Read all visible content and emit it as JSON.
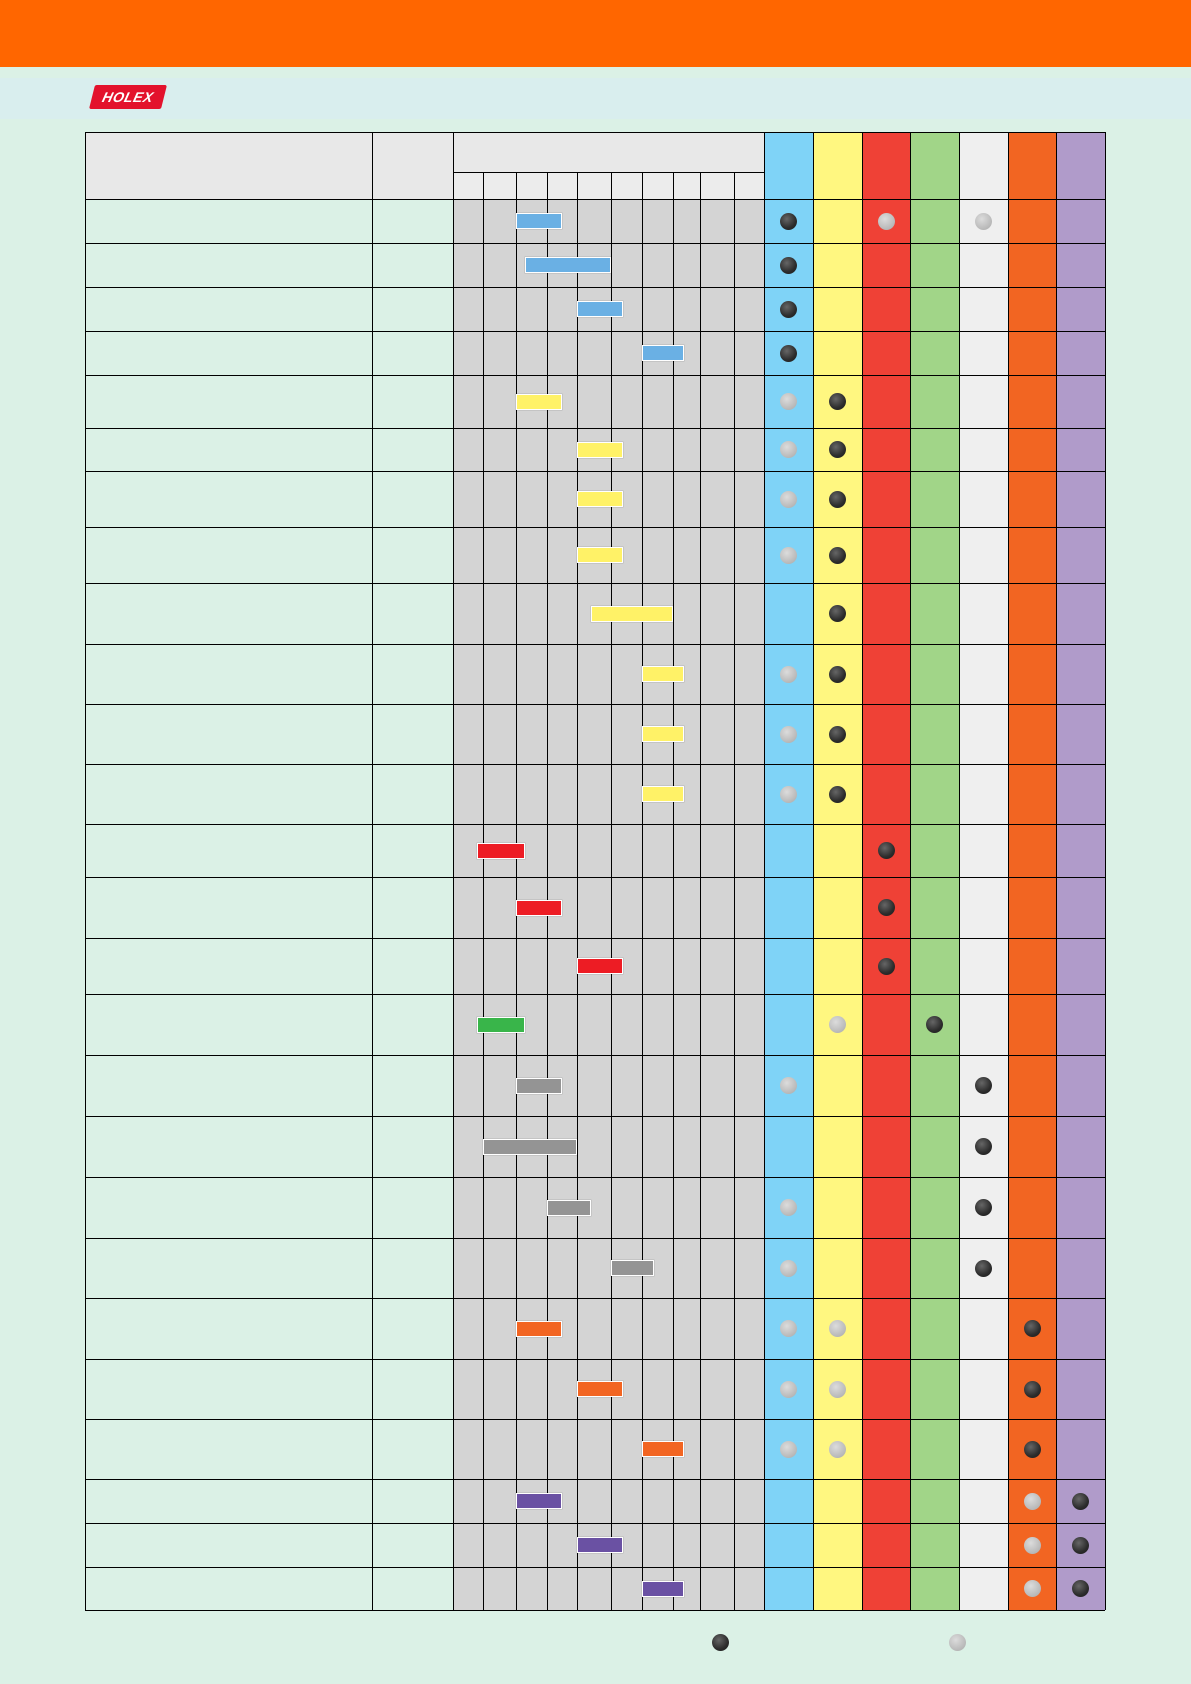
{
  "brand": {
    "logo_text": "HOLEX"
  },
  "legend": [
    "full",
    "half"
  ],
  "colors": {
    "header_bar": "#ff6600",
    "band": "#d9eeee",
    "page_bg": "#dbf1e6",
    "header_cell": "#e8e8e8",
    "scale_cell": "#d4d4d4",
    "groups": [
      "#7fd3f7",
      "#fff780",
      "#ef4136",
      "#a1d588",
      "#efefef",
      "#f26522",
      "#b09bca"
    ],
    "bar_colors": {
      "blue": "#6ab0e4",
      "yellow": "#fff267",
      "red": "#ed1c24",
      "green": "#39b54a",
      "grey": "#949494",
      "orange": "#f26522",
      "purple": "#6a51a3"
    }
  },
  "table": {
    "rows": [
      {
        "bar": [
          2,
          3.5
        ],
        "color": "blue",
        "marks": [
          "full",
          null,
          "half",
          null,
          "half",
          null,
          null
        ]
      },
      {
        "bar": [
          2.3,
          5
        ],
        "color": "blue",
        "marks": [
          "full",
          null,
          null,
          null,
          null,
          null,
          null
        ]
      },
      {
        "bar": [
          4,
          5.4
        ],
        "color": "blue",
        "marks": [
          "full",
          null,
          null,
          null,
          null,
          null,
          null
        ]
      },
      {
        "bar": [
          6,
          7.4
        ],
        "color": "blue",
        "marks": [
          "full",
          null,
          null,
          null,
          null,
          null,
          null
        ]
      },
      {
        "bar": [
          2,
          3.5
        ],
        "color": "yellow",
        "marks": [
          "half",
          "full",
          null,
          null,
          null,
          null,
          null
        ]
      },
      {
        "bar": [
          4,
          5.4
        ],
        "color": "yellow",
        "marks": [
          "half",
          "full",
          null,
          null,
          null,
          null,
          null
        ]
      },
      {
        "bar": [
          4,
          5.4
        ],
        "color": "yellow",
        "marks": [
          "half",
          "full",
          null,
          null,
          null,
          null,
          null
        ]
      },
      {
        "bar": [
          4,
          5.4
        ],
        "color": "yellow",
        "marks": [
          "half",
          "full",
          null,
          null,
          null,
          null,
          null
        ]
      },
      {
        "bar": [
          4.4,
          7
        ],
        "color": "yellow",
        "marks": [
          null,
          "full",
          null,
          null,
          null,
          null,
          null
        ]
      },
      {
        "bar": [
          6,
          7.4
        ],
        "color": "yellow",
        "marks": [
          "half",
          "full",
          null,
          null,
          null,
          null,
          null
        ]
      },
      {
        "bar": [
          6,
          7.4
        ],
        "color": "yellow",
        "marks": [
          "half",
          "full",
          null,
          null,
          null,
          null,
          null
        ]
      },
      {
        "bar": [
          6,
          7.4
        ],
        "color": "yellow",
        "marks": [
          "half",
          "full",
          null,
          null,
          null,
          null,
          null
        ]
      },
      {
        "bar": [
          0.8,
          2.3
        ],
        "color": "red",
        "marks": [
          null,
          null,
          "full",
          null,
          null,
          null,
          null
        ]
      },
      {
        "bar": [
          2,
          3.5
        ],
        "color": "red",
        "marks": [
          null,
          null,
          "full",
          null,
          null,
          null,
          null
        ]
      },
      {
        "bar": [
          4,
          5.4
        ],
        "color": "red",
        "marks": [
          null,
          null,
          "full",
          null,
          null,
          null,
          null
        ]
      },
      {
        "bar": [
          0.8,
          2.3
        ],
        "color": "green",
        "marks": [
          null,
          "half",
          null,
          "full",
          null,
          null,
          null
        ]
      },
      {
        "bar": [
          2,
          3.5
        ],
        "color": "grey",
        "marks": [
          "half",
          null,
          null,
          null,
          "full",
          null,
          null
        ]
      },
      {
        "bar": [
          1,
          4
        ],
        "color": "grey",
        "marks": [
          null,
          null,
          null,
          null,
          "full",
          null,
          null
        ]
      },
      {
        "bar": [
          3,
          4.4
        ],
        "color": "grey",
        "marks": [
          "half",
          null,
          null,
          null,
          "full",
          null,
          null
        ]
      },
      {
        "bar": [
          5,
          6.4
        ],
        "color": "grey",
        "marks": [
          "half",
          null,
          null,
          null,
          "full",
          null,
          null
        ]
      },
      {
        "bar": [
          2,
          3.5
        ],
        "color": "orange",
        "marks": [
          "half",
          "half",
          null,
          null,
          null,
          "full",
          null
        ]
      },
      {
        "bar": [
          4,
          5.4
        ],
        "color": "orange",
        "marks": [
          "half",
          "half",
          null,
          null,
          null,
          "full",
          null
        ]
      },
      {
        "bar": [
          6,
          7.4
        ],
        "color": "orange",
        "marks": [
          "half",
          "half",
          null,
          null,
          null,
          "full",
          null
        ]
      },
      {
        "bar": [
          2,
          3.5
        ],
        "color": "purple",
        "marks": [
          null,
          null,
          null,
          null,
          null,
          "half",
          "full"
        ]
      },
      {
        "bar": [
          4,
          5.4
        ],
        "color": "purple",
        "marks": [
          null,
          null,
          null,
          null,
          null,
          "half",
          "full"
        ]
      },
      {
        "bar": [
          6,
          7.4
        ],
        "color": "purple",
        "marks": [
          null,
          null,
          null,
          null,
          null,
          "half",
          "full"
        ]
      }
    ]
  }
}
